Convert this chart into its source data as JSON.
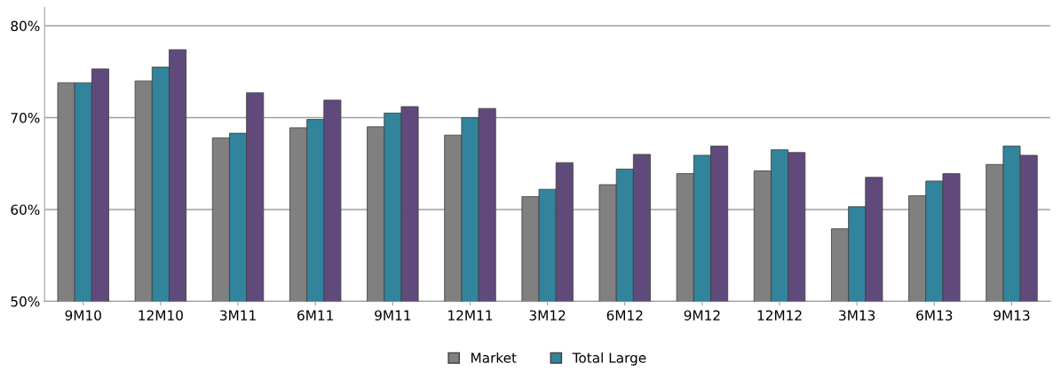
{
  "chart_data": {
    "type": "bar",
    "categories": [
      "9M10",
      "12M10",
      "3M11",
      "6M11",
      "9M11",
      "12M11",
      "3M12",
      "6M12",
      "9M12",
      "12M12",
      "3M13",
      "6M13",
      "9M13"
    ],
    "series": [
      {
        "name": "Market",
        "color": "#808080",
        "values": [
          73.8,
          74.0,
          67.8,
          68.9,
          69.0,
          68.1,
          61.4,
          62.7,
          63.9,
          64.2,
          57.9,
          61.5,
          64.9
        ]
      },
      {
        "name": "Total Large",
        "color": "#31849b",
        "values": [
          73.8,
          75.5,
          68.3,
          69.8,
          70.5,
          70.0,
          62.2,
          64.4,
          65.9,
          66.5,
          60.3,
          63.1,
          66.9
        ]
      },
      {
        "color": "#604a7b",
        "values": [
          75.3,
          77.4,
          72.7,
          71.9,
          71.2,
          71.0,
          65.1,
          66.0,
          66.9,
          66.2,
          63.5,
          63.9,
          65.9
        ]
      }
    ],
    "ylim": [
      50,
      82
    ],
    "yticks": [
      {
        "value": 50,
        "label": "50%"
      },
      {
        "value": 60,
        "label": "60%"
      },
      {
        "value": 70,
        "label": "70%"
      },
      {
        "value": 80,
        "label": "80%"
      }
    ],
    "grid": "y",
    "legend": "bottom"
  }
}
